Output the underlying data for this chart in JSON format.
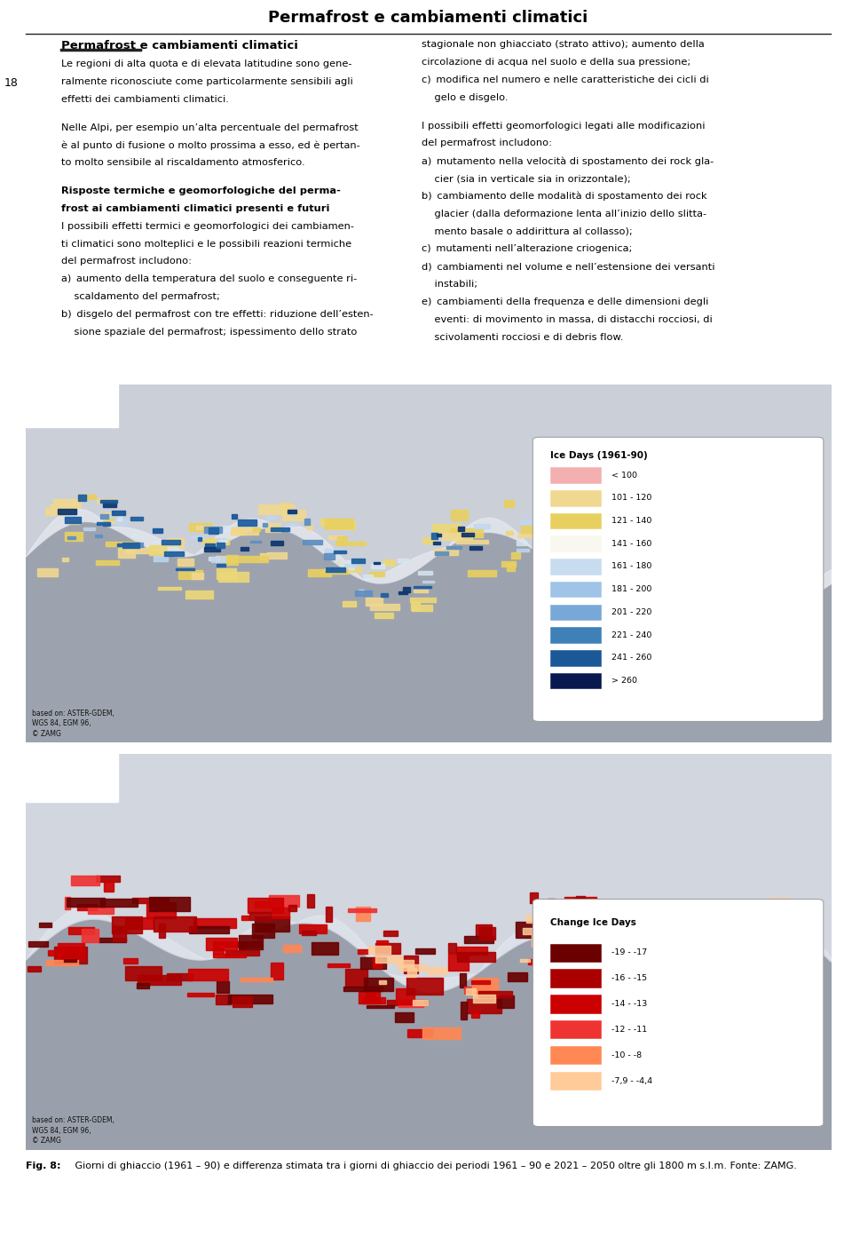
{
  "page_title": "Permafrost e cambiamenti climatici",
  "page_number": "18",
  "section_header": "Permafrost e cambiamenti climatici",
  "left_col_lines": [
    {
      "text": "Le regioni di alta quota e di elevata latitudine sono gene-",
      "bold": false,
      "indent": 0
    },
    {
      "text": "ralmente riconosciute come particolarmente sensibili agli",
      "bold": false,
      "indent": 0
    },
    {
      "text": "effetti dei cambiamenti climatici.",
      "bold": false,
      "indent": 0
    },
    {
      "text": " ",
      "bold": false,
      "indent": 0
    },
    {
      "text": "Nelle Alpi, per esempio un’alta percentuale del permafrost",
      "bold": false,
      "indent": 0
    },
    {
      "text": "è al punto di fusione o molto prossima a esso, ed è pertan-",
      "bold": false,
      "indent": 0
    },
    {
      "text": "to molto sensibile al riscaldamento atmosferico.",
      "bold": false,
      "indent": 0
    },
    {
      "text": " ",
      "bold": false,
      "indent": 0
    },
    {
      "text": "Risposte termiche e geomorfologiche del perma-",
      "bold": true,
      "indent": 0
    },
    {
      "text": "frost ai cambiamenti climatici presenti e futuri",
      "bold": true,
      "indent": 0
    },
    {
      "text": "I possibili effetti termici e geomorfologici dei cambiamen-",
      "bold": false,
      "indent": 0
    },
    {
      "text": "ti climatici sono molteplici e le possibili reazioni termiche",
      "bold": false,
      "indent": 0
    },
    {
      "text": "del permafrost includono:",
      "bold": false,
      "indent": 0
    },
    {
      "text": "a) aumento della temperatura del suolo e conseguente ri-",
      "bold": false,
      "indent": 0
    },
    {
      "text": "    scaldamento del permafrost;",
      "bold": false,
      "indent": 0
    },
    {
      "text": "b) disgelo del permafrost con tre effetti: riduzione dell’esten-",
      "bold": false,
      "indent": 0
    },
    {
      "text": "    sione spaziale del permafrost; ispessimento dello strato",
      "bold": false,
      "indent": 0
    }
  ],
  "right_col_lines": [
    {
      "text": "stagionale non ghiacciato (strato attivo); aumento della",
      "bold": false
    },
    {
      "text": "circolazione di acqua nel suolo e della sua pressione;",
      "bold": false
    },
    {
      "text": "c) modifica nel numero e nelle caratteristiche dei cicli di",
      "bold": false
    },
    {
      "text": "    gelo e disgelo.",
      "bold": false
    },
    {
      "text": " ",
      "bold": false
    },
    {
      "text": "I possibili effetti geomorfologici legati alle modificazioni",
      "bold": false
    },
    {
      "text": "del permafrost includono:",
      "bold": false
    },
    {
      "text": "a) mutamento nella velocità di spostamento dei rock gla-",
      "bold": false
    },
    {
      "text": "    cier (sia in verticale sia in orizzontale);",
      "bold": false
    },
    {
      "text": "b) cambiamento delle modalità di spostamento dei rock",
      "bold": false
    },
    {
      "text": "    glacier (dalla deformazione lenta all’inizio dello slitta-",
      "bold": false
    },
    {
      "text": "    mento basale o addirittura al collasso);",
      "bold": false
    },
    {
      "text": "c) mutamenti nell’alterazione criogenica;",
      "bold": false
    },
    {
      "text": "d) cambiamenti nel volume e nell’estensione dei versanti",
      "bold": false
    },
    {
      "text": "    instabili;",
      "bold": false
    },
    {
      "text": "e) cambiamenti della frequenza e delle dimensioni degli",
      "bold": false
    },
    {
      "text": "    eventi: di movimento in massa, di distacchi rocciosi, di",
      "bold": false
    },
    {
      "text": "    scivolamenti rocciosi e di debris flow.",
      "bold": false
    }
  ],
  "legend1_title": "Ice Days (1961-90)",
  "legend1_items": [
    {
      "label": "< 100",
      "color": "#F4B0B0"
    },
    {
      "label": "101 - 120",
      "color": "#F0D890"
    },
    {
      "label": "121 - 140",
      "color": "#E8D060"
    },
    {
      "label": "141 - 160",
      "color": "#F8F8F0"
    },
    {
      "label": "161 - 180",
      "color": "#C8DCF0"
    },
    {
      "label": "181 - 200",
      "color": "#A0C4E8"
    },
    {
      "label": "201 - 220",
      "color": "#78A8D8"
    },
    {
      "label": "221 - 240",
      "color": "#4080B8"
    },
    {
      "label": "241 - 260",
      "color": "#1A5898"
    },
    {
      "label": "> 260",
      "color": "#0A1850"
    }
  ],
  "legend2_title": "Change Ice Days",
  "legend2_items": [
    {
      "label": "-19 - -17",
      "color": "#6B0000"
    },
    {
      "label": "-16 - -15",
      "color": "#AA0000"
    },
    {
      "label": "-14 - -13",
      "color": "#CC0000"
    },
    {
      "label": "-12 - -11",
      "color": "#EE3333"
    },
    {
      "label": "-10 - -8",
      "color": "#FF8855"
    },
    {
      "label": "-7,9 - -4,4",
      "color": "#FFCC99"
    }
  ],
  "map1_source": "based on: ASTER-GDEM,\nWGS 84, EGM 96,\n© ZAMG",
  "map2_source": "based on: ASTER-GDEM,\nWGS 84, EGM 96,\n© ZAMG",
  "fig_caption_bold": "Fig. 8:",
  "fig_caption_rest": " Giorni di ghiaccio (1961 – 90) e differenza stimata tra i giorni di ghiaccio dei periodi 1961 – 90 e 2021 – 2050 oltre gli 1800 m s.l.m. Fonte: ZAMG.",
  "title_fontsize": 13,
  "section_fontsize": 9.5,
  "body_fontsize": 8.2,
  "caption_fontsize": 8.0,
  "source_fontsize": 5.5,
  "legend_title_fontsize": 7.5,
  "legend_item_fontsize": 6.8,
  "page_bg": "#FFFFFF",
  "map_bg": "#B0B8C4",
  "map_lower_bg": "#A8B0BC",
  "ruler_color": "#222222",
  "text_color": "#000000"
}
